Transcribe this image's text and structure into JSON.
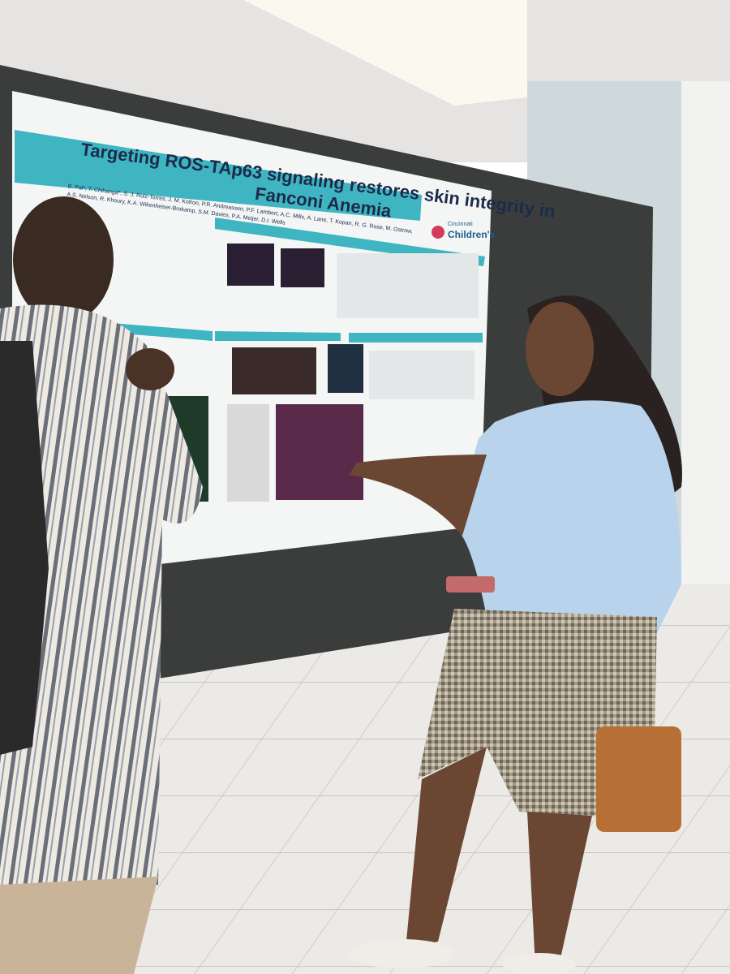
{
  "poster": {
    "title_line1": "Targeting ROS-TAp63 signaling restores skin integrity in",
    "title_line2": "Fanconi Anemia",
    "authors_line1": "B. Pal*, T. Chihanga*, S. J. Ruiz-Torres, J. M. Kofron, P.R. Andreassen, P.F. Lambert, A.C. Mills, A. Lane, T. Kopan, R. G. Rose, M. Ostrow,",
    "authors_line2": "A.S. Nelson, R. Khoury, K.A. Wikenheiser-Brokamp, S.M. Davies, P.A. Meijer, D.I. Wells",
    "logo_top": "Cincinnati",
    "logo_main": "Children's"
  }
}
